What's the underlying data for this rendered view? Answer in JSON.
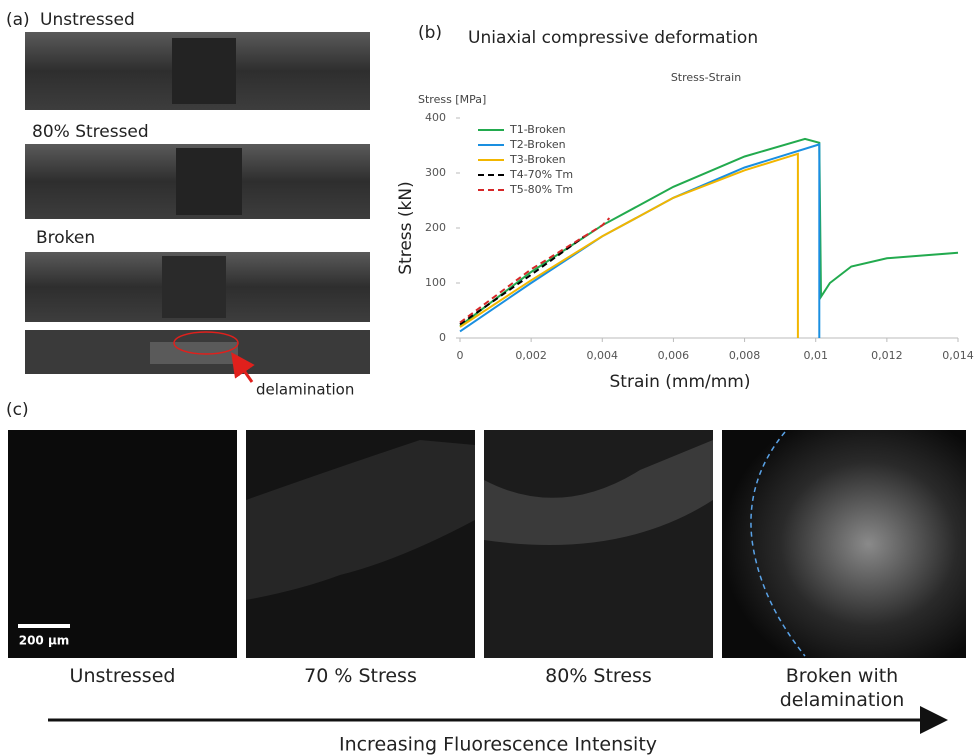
{
  "panel_a": {
    "label": "(a)",
    "samples": [
      "Unstressed",
      "80% Stressed",
      "Broken"
    ],
    "annotation": "delamination"
  },
  "panel_b_label": "(b)",
  "chart_data": {
    "type": "line",
    "title": "Uniaxial compressive deformation",
    "subtitle": "Stress-Strain",
    "y_unit_label": "Stress [MPa]",
    "y_label": "Stress (kN)",
    "x_label": "Strain (mm/mm)",
    "xlim": [
      0,
      0.014
    ],
    "xticks": [
      0,
      {
        "value": 0.002,
        "label": "0,002"
      },
      {
        "value": 0.004,
        "label": "0,004"
      },
      {
        "value": 0.006,
        "label": "0,006"
      },
      {
        "value": 0.008,
        "label": "0,008"
      },
      {
        "value": 0.01,
        "label": "0,01"
      },
      {
        "value": 0.012,
        "label": "0,012"
      },
      {
        "value": 0.014,
        "label": "0,014"
      }
    ],
    "ylim": [
      0,
      400
    ],
    "yticks": [
      0,
      100,
      200,
      300,
      400
    ],
    "series": [
      {
        "name": "T1-Broken",
        "color": "#22aa4e",
        "dash": "solid",
        "x": [
          0,
          0.002,
          0.004,
          0.006,
          0.008,
          0.0097,
          0.0101,
          0.01015,
          0.0104,
          0.011,
          0.012,
          0.013,
          0.014
        ],
        "values": [
          22,
          120,
          205,
          275,
          330,
          362,
          355,
          75,
          100,
          130,
          145,
          150,
          155
        ]
      },
      {
        "name": "T2-Broken",
        "color": "#1a8fe0",
        "dash": "solid",
        "x": [
          0,
          0.002,
          0.004,
          0.006,
          0.008,
          0.01,
          0.0101,
          0.0101
        ],
        "values": [
          12,
          100,
          185,
          255,
          310,
          350,
          352,
          0
        ]
      },
      {
        "name": "T3-Broken",
        "color": "#f2b600",
        "dash": "solid",
        "x": [
          0,
          0.002,
          0.004,
          0.006,
          0.008,
          0.0095,
          0.0095
        ],
        "values": [
          20,
          105,
          185,
          255,
          305,
          335,
          0
        ]
      },
      {
        "name": "T4-70% Tm",
        "color": "#000000",
        "dash": "dashed",
        "x": [
          0,
          0.002,
          0.0035
        ],
        "values": [
          25,
          115,
          185
        ]
      },
      {
        "name": "T5-80% Tm",
        "color": "#d62728",
        "dash": "dashed",
        "x": [
          0,
          0.002,
          0.004,
          0.0042
        ],
        "values": [
          28,
          125,
          205,
          218
        ]
      }
    ]
  },
  "panel_c": {
    "label": "(c)",
    "scale_bar": "200 µm",
    "captions": [
      "Unstressed",
      "70 % Stress",
      "80% Stress",
      "Broken with delamination"
    ],
    "axis_label": "Increasing Fluorescence Intensity"
  }
}
